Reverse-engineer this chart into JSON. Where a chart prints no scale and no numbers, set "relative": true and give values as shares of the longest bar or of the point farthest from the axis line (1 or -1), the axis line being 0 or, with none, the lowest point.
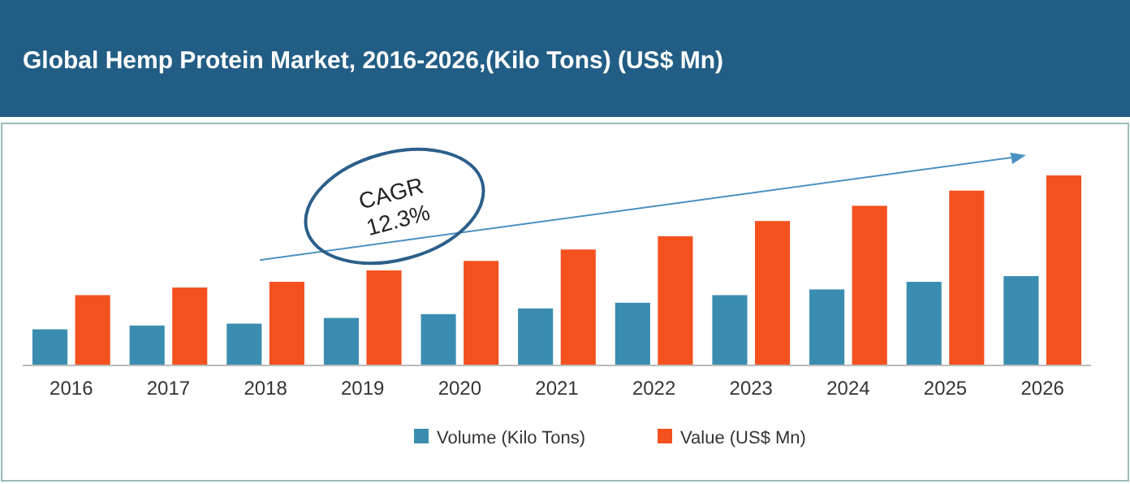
{
  "chart_data": {
    "type": "bar",
    "title": "Global Hemp Protein Market, 2016-2026,(Kilo Tons) (US$ Mn)",
    "relative": true,
    "categories": [
      "2016",
      "2017",
      "2018",
      "2019",
      "2020",
      "2021",
      "2022",
      "2023",
      "2024",
      "2025",
      "2026"
    ],
    "series": [
      {
        "name": "Volume (Kilo Tons)",
        "color": "#3a8db0",
        "values": [
          0.19,
          0.21,
          0.22,
          0.25,
          0.27,
          0.3,
          0.33,
          0.37,
          0.4,
          0.44,
          0.47
        ]
      },
      {
        "name": "Value (US$ Mn)",
        "color": "#f4511e",
        "values": [
          0.37,
          0.41,
          0.44,
          0.5,
          0.55,
          0.61,
          0.68,
          0.76,
          0.84,
          0.92,
          1
        ]
      }
    ],
    "legend": "bottom",
    "annotations": [
      "CAGR 12.3%"
    ]
  }
}
